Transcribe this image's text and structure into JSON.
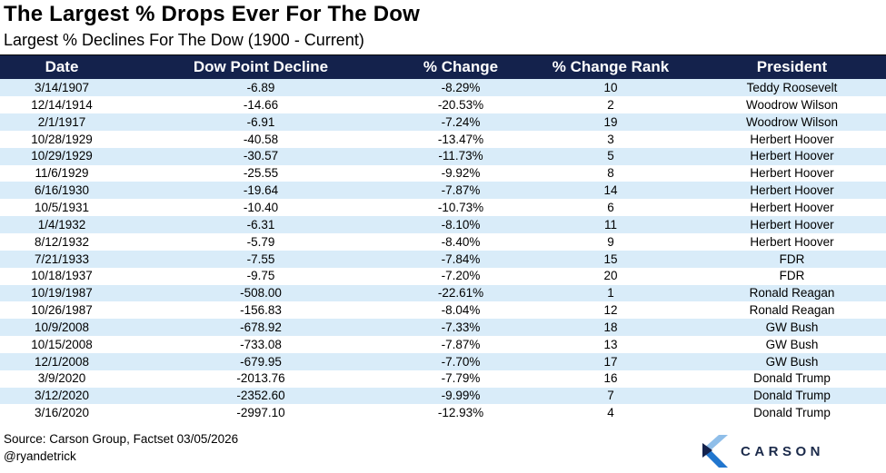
{
  "header": {
    "title": "The Largest % Drops Ever For The Dow",
    "subtitle": "Largest % Declines For The Dow (1900 - Current)"
  },
  "chart_data": {
    "type": "table",
    "title": "The Largest % Drops Ever For The Dow",
    "subtitle": "Largest % Declines For The Dow (1900 - Current)",
    "columns": [
      "Date",
      "Dow Point Decline",
      "% Change",
      "% Change Rank",
      "President"
    ],
    "rows": [
      [
        "3/14/1907",
        "-6.89",
        "-8.29%",
        "10",
        "Teddy Roosevelt"
      ],
      [
        "12/14/1914",
        "-14.66",
        "-20.53%",
        "2",
        "Woodrow Wilson"
      ],
      [
        "2/1/1917",
        "-6.91",
        "-7.24%",
        "19",
        "Woodrow Wilson"
      ],
      [
        "10/28/1929",
        "-40.58",
        "-13.47%",
        "3",
        "Herbert Hoover"
      ],
      [
        "10/29/1929",
        "-30.57",
        "-11.73%",
        "5",
        "Herbert Hoover"
      ],
      [
        "11/6/1929",
        "-25.55",
        "-9.92%",
        "8",
        "Herbert Hoover"
      ],
      [
        "6/16/1930",
        "-19.64",
        "-7.87%",
        "14",
        "Herbert Hoover"
      ],
      [
        "10/5/1931",
        "-10.40",
        "-10.73%",
        "6",
        "Herbert Hoover"
      ],
      [
        "1/4/1932",
        "-6.31",
        "-8.10%",
        "11",
        "Herbert Hoover"
      ],
      [
        "8/12/1932",
        "-5.79",
        "-8.40%",
        "9",
        "Herbert Hoover"
      ],
      [
        "7/21/1933",
        "-7.55",
        "-7.84%",
        "15",
        "FDR"
      ],
      [
        "10/18/1937",
        "-9.75",
        "-7.20%",
        "20",
        "FDR"
      ],
      [
        "10/19/1987",
        "-508.00",
        "-22.61%",
        "1",
        "Ronald Reagan"
      ],
      [
        "10/26/1987",
        "-156.83",
        "-8.04%",
        "12",
        "Ronald Reagan"
      ],
      [
        "10/9/2008",
        "-678.92",
        "-7.33%",
        "18",
        "GW Bush"
      ],
      [
        "10/15/2008",
        "-733.08",
        "-7.87%",
        "13",
        "GW Bush"
      ],
      [
        "12/1/2008",
        "-679.95",
        "-7.70%",
        "17",
        "GW Bush"
      ],
      [
        "3/9/2020",
        "-2013.76",
        "-7.79%",
        "16",
        "Donald Trump"
      ],
      [
        "3/12/2020",
        "-2352.60",
        "-9.99%",
        "7",
        "Donald Trump"
      ],
      [
        "3/16/2020",
        "-2997.10",
        "-12.93%",
        "4",
        "Donald Trump"
      ]
    ],
    "layout": {
      "header_background": "#14224C",
      "stripe_background": "#D9ECF9",
      "stripe_pattern": "odd-rows-shaded",
      "grid": false
    }
  },
  "footer": {
    "source": "Source: Carson Group, Factset 03/05/2026",
    "handle": "@ryandetrick",
    "logo_text": "CARSON"
  },
  "colors": {
    "header_bg": "#14224C",
    "row_stripe": "#D9ECF9",
    "logo_light_blue": "#8FBEE9",
    "logo_bright_blue": "#2176CE",
    "logo_navy": "#14224C",
    "logo_text_navy": "#1B2A4A"
  },
  "icons": {
    "carson_chevron": "carson-chevron-icon"
  }
}
